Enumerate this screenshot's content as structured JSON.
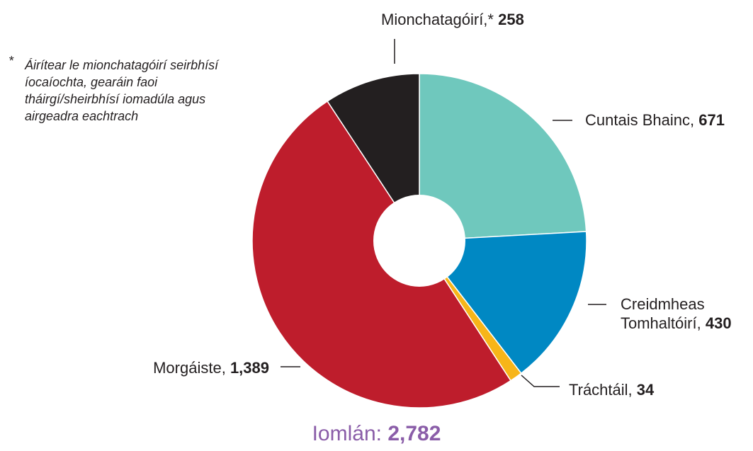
{
  "chart_data": {
    "type": "donut",
    "categories": [
      "Cuntais Bhainc,",
      "Creidmheas Tomhaltóirí,",
      "Tráchtáil,",
      "Morgáiste,",
      "Mionchatagóirí,*"
    ],
    "values": [
      671,
      430,
      34,
      1389,
      258
    ],
    "value_labels": [
      "671",
      "430",
      "34",
      "1,389",
      "258"
    ],
    "colors": [
      "#6fc8bd",
      "#0088c3",
      "#f7b519",
      "#be1d2c",
      "#231f20"
    ],
    "footnote_marker": "*",
    "footnote": "Áirítear le mionchatagóirí seirbhísí íocaíochta, gearáin faoi tháirgí/sheirbhísí iomadúla agus airgeadra eachtrach",
    "total_text": "Iomlán:",
    "total": 2782,
    "total_label": "2,782"
  }
}
